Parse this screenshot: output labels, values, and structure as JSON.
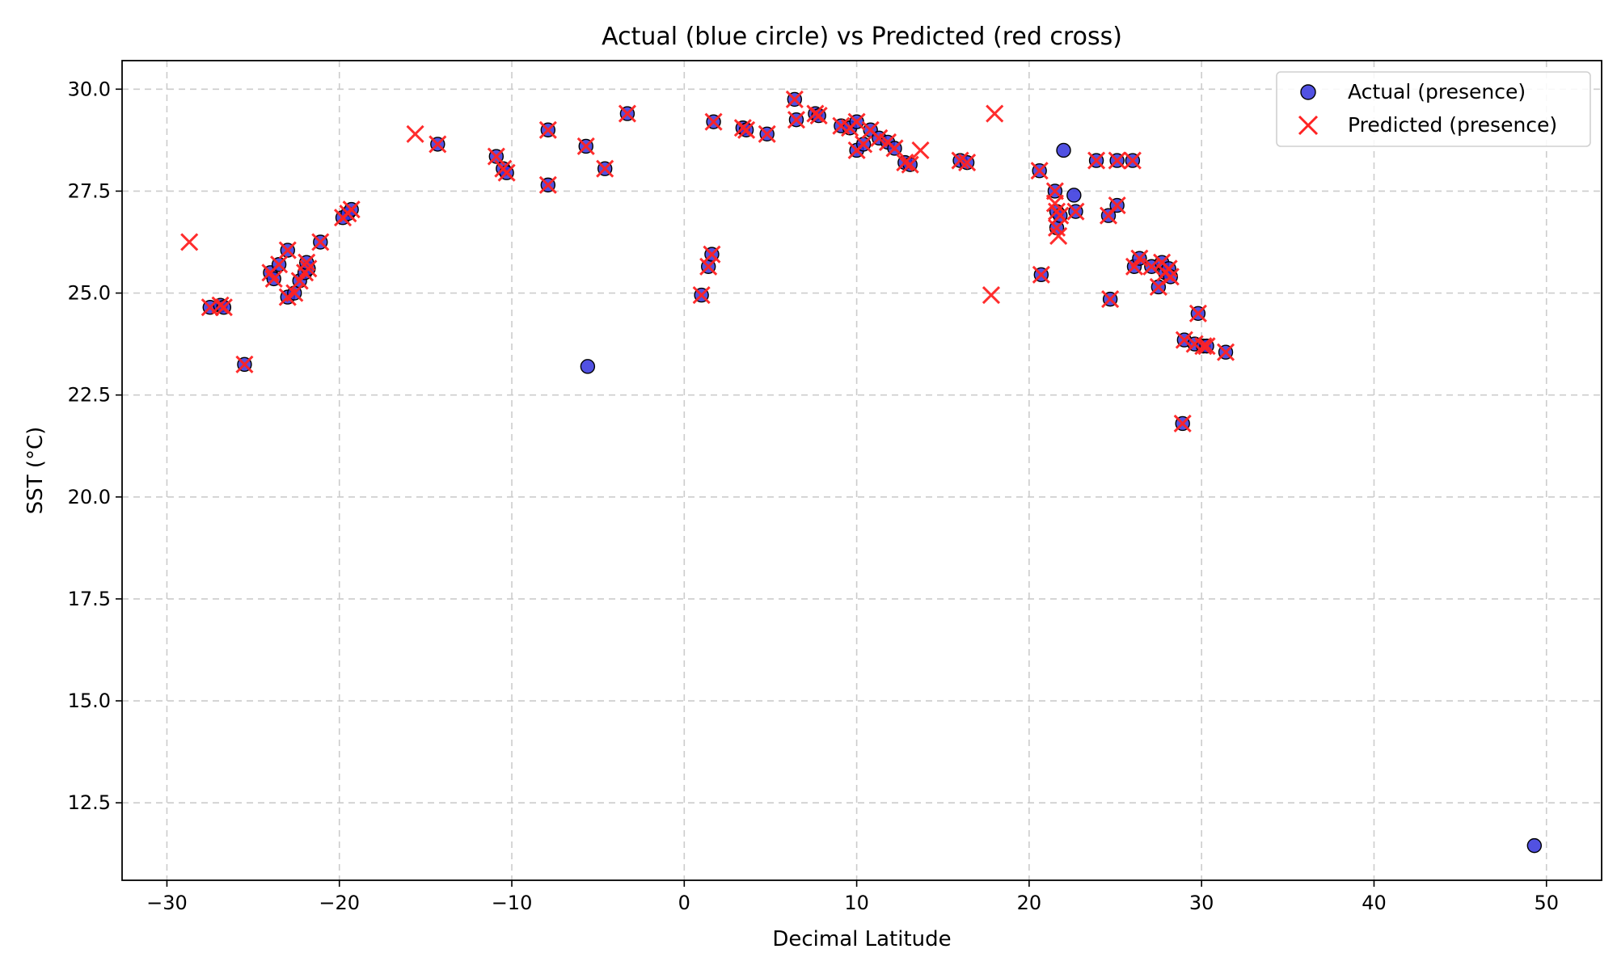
{
  "chart_data": {
    "type": "scatter",
    "title": "Actual (blue circle) vs Predicted (red cross)",
    "xlabel": "Decimal Latitude",
    "ylabel": "SST (°C)",
    "xlim": [
      -32.6,
      53.2
    ],
    "ylim": [
      10.6,
      30.7
    ],
    "xticks": [
      -30,
      -20,
      -10,
      0,
      10,
      20,
      30,
      40,
      50
    ],
    "yticks": [
      12.5,
      15.0,
      17.5,
      20.0,
      22.5,
      25.0,
      27.5,
      30.0
    ],
    "xtick_labels": [
      "−30",
      "−20",
      "−10",
      "0",
      "10",
      "20",
      "30",
      "40",
      "50"
    ],
    "ytick_labels": [
      "12.5",
      "15.0",
      "17.5",
      "20.0",
      "22.5",
      "25.0",
      "27.5",
      "30.0"
    ],
    "grid": true,
    "legend_position": "top-right",
    "series": [
      {
        "name": "Actual (presence)",
        "marker": "circle",
        "color": "#3333dd",
        "edge_color": "#000000",
        "points": [
          [
            -27.5,
            24.65
          ],
          [
            -26.9,
            24.7
          ],
          [
            -26.7,
            24.65
          ],
          [
            -25.5,
            23.25
          ],
          [
            -24.0,
            25.5
          ],
          [
            -23.8,
            25.35
          ],
          [
            -23.5,
            25.7
          ],
          [
            -23.0,
            26.05
          ],
          [
            -23.0,
            24.9
          ],
          [
            -22.6,
            25.0
          ],
          [
            -22.3,
            25.3
          ],
          [
            -22.0,
            25.5
          ],
          [
            -21.8,
            25.6
          ],
          [
            -21.9,
            25.75
          ],
          [
            -21.1,
            26.25
          ],
          [
            -19.8,
            26.85
          ],
          [
            -19.5,
            26.95
          ],
          [
            -19.3,
            27.05
          ],
          [
            -14.3,
            28.65
          ],
          [
            -10.9,
            28.35
          ],
          [
            -10.5,
            28.05
          ],
          [
            -10.3,
            27.95
          ],
          [
            -7.9,
            29.0
          ],
          [
            -7.9,
            27.65
          ],
          [
            -5.6,
            23.2
          ],
          [
            -5.7,
            28.6
          ],
          [
            -4.6,
            28.05
          ],
          [
            -3.3,
            29.4
          ],
          [
            1.0,
            24.95
          ],
          [
            1.4,
            25.65
          ],
          [
            1.6,
            25.95
          ],
          [
            1.7,
            29.2
          ],
          [
            3.4,
            29.05
          ],
          [
            3.6,
            29.0
          ],
          [
            4.8,
            28.9
          ],
          [
            6.4,
            29.75
          ],
          [
            6.5,
            29.25
          ],
          [
            7.6,
            29.4
          ],
          [
            7.8,
            29.35
          ],
          [
            9.1,
            29.1
          ],
          [
            9.6,
            29.05
          ],
          [
            10.0,
            29.2
          ],
          [
            10.0,
            28.5
          ],
          [
            10.4,
            28.65
          ],
          [
            10.8,
            29.0
          ],
          [
            11.3,
            28.8
          ],
          [
            11.8,
            28.7
          ],
          [
            12.2,
            28.55
          ],
          [
            12.8,
            28.2
          ],
          [
            13.1,
            28.15
          ],
          [
            16.0,
            28.25
          ],
          [
            16.4,
            28.2
          ],
          [
            20.6,
            28.0
          ],
          [
            20.7,
            25.45
          ],
          [
            21.5,
            27.5
          ],
          [
            21.6,
            27.0
          ],
          [
            21.6,
            26.6
          ],
          [
            21.8,
            26.9
          ],
          [
            22.0,
            28.5
          ],
          [
            22.6,
            27.4
          ],
          [
            22.7,
            27.0
          ],
          [
            23.9,
            28.25
          ],
          [
            24.6,
            26.9
          ],
          [
            24.7,
            24.85
          ],
          [
            25.1,
            27.15
          ],
          [
            25.1,
            28.25
          ],
          [
            26.0,
            28.25
          ],
          [
            26.1,
            25.65
          ],
          [
            26.4,
            25.85
          ],
          [
            27.1,
            25.65
          ],
          [
            27.5,
            25.15
          ],
          [
            27.7,
            25.75
          ],
          [
            27.9,
            25.5
          ],
          [
            28.1,
            25.6
          ],
          [
            28.2,
            25.4
          ],
          [
            28.9,
            21.8
          ],
          [
            29.0,
            23.85
          ],
          [
            29.6,
            23.75
          ],
          [
            29.8,
            24.5
          ],
          [
            30.1,
            23.7
          ],
          [
            30.3,
            23.7
          ],
          [
            31.4,
            23.55
          ],
          [
            49.3,
            11.45
          ]
        ]
      },
      {
        "name": "Predicted (presence)",
        "marker": "x",
        "color": "#ff2222",
        "points": [
          [
            -28.7,
            26.25
          ],
          [
            -27.5,
            24.65
          ],
          [
            -26.9,
            24.7
          ],
          [
            -26.7,
            24.65
          ],
          [
            -25.5,
            23.25
          ],
          [
            -24.0,
            25.5
          ],
          [
            -23.8,
            25.35
          ],
          [
            -23.5,
            25.7
          ],
          [
            -23.0,
            26.05
          ],
          [
            -23.0,
            24.9
          ],
          [
            -22.6,
            25.0
          ],
          [
            -22.3,
            25.3
          ],
          [
            -22.0,
            25.5
          ],
          [
            -21.8,
            25.6
          ],
          [
            -21.9,
            25.75
          ],
          [
            -21.1,
            26.25
          ],
          [
            -19.8,
            26.85
          ],
          [
            -19.5,
            26.95
          ],
          [
            -19.3,
            27.05
          ],
          [
            -15.6,
            28.9
          ],
          [
            -14.3,
            28.65
          ],
          [
            -10.9,
            28.35
          ],
          [
            -10.5,
            28.05
          ],
          [
            -10.3,
            27.95
          ],
          [
            -7.9,
            29.0
          ],
          [
            -7.9,
            27.65
          ],
          [
            -5.7,
            28.6
          ],
          [
            -4.6,
            28.05
          ],
          [
            -3.3,
            29.4
          ],
          [
            1.0,
            24.95
          ],
          [
            1.4,
            25.65
          ],
          [
            1.6,
            25.95
          ],
          [
            1.7,
            29.2
          ],
          [
            3.4,
            29.05
          ],
          [
            3.6,
            29.0
          ],
          [
            4.8,
            28.9
          ],
          [
            6.4,
            29.75
          ],
          [
            6.5,
            29.25
          ],
          [
            7.6,
            29.4
          ],
          [
            7.8,
            29.35
          ],
          [
            9.1,
            29.1
          ],
          [
            9.6,
            29.05
          ],
          [
            10.0,
            29.2
          ],
          [
            10.0,
            28.5
          ],
          [
            10.4,
            28.65
          ],
          [
            10.8,
            29.0
          ],
          [
            11.3,
            28.8
          ],
          [
            11.8,
            28.7
          ],
          [
            12.2,
            28.55
          ],
          [
            12.8,
            28.2
          ],
          [
            13.1,
            28.15
          ],
          [
            13.7,
            28.5
          ],
          [
            16.0,
            28.25
          ],
          [
            16.4,
            28.2
          ],
          [
            17.8,
            24.95
          ],
          [
            18.0,
            29.4
          ],
          [
            20.6,
            28.0
          ],
          [
            20.7,
            25.45
          ],
          [
            21.5,
            27.5
          ],
          [
            21.6,
            27.0
          ],
          [
            21.6,
            26.6
          ],
          [
            21.8,
            26.9
          ],
          [
            21.7,
            26.4
          ],
          [
            21.5,
            27.2
          ],
          [
            22.7,
            27.0
          ],
          [
            23.9,
            28.25
          ],
          [
            24.6,
            26.9
          ],
          [
            24.7,
            24.85
          ],
          [
            25.1,
            27.15
          ],
          [
            25.1,
            28.25
          ],
          [
            26.0,
            28.25
          ],
          [
            26.1,
            25.65
          ],
          [
            26.4,
            25.85
          ],
          [
            27.1,
            25.65
          ],
          [
            27.5,
            25.15
          ],
          [
            27.7,
            25.75
          ],
          [
            27.9,
            25.5
          ],
          [
            28.1,
            25.6
          ],
          [
            28.2,
            25.4
          ],
          [
            28.9,
            21.8
          ],
          [
            29.0,
            23.85
          ],
          [
            29.6,
            23.75
          ],
          [
            29.8,
            24.5
          ],
          [
            30.1,
            23.7
          ],
          [
            30.3,
            23.7
          ],
          [
            31.4,
            23.55
          ]
        ]
      }
    ]
  }
}
